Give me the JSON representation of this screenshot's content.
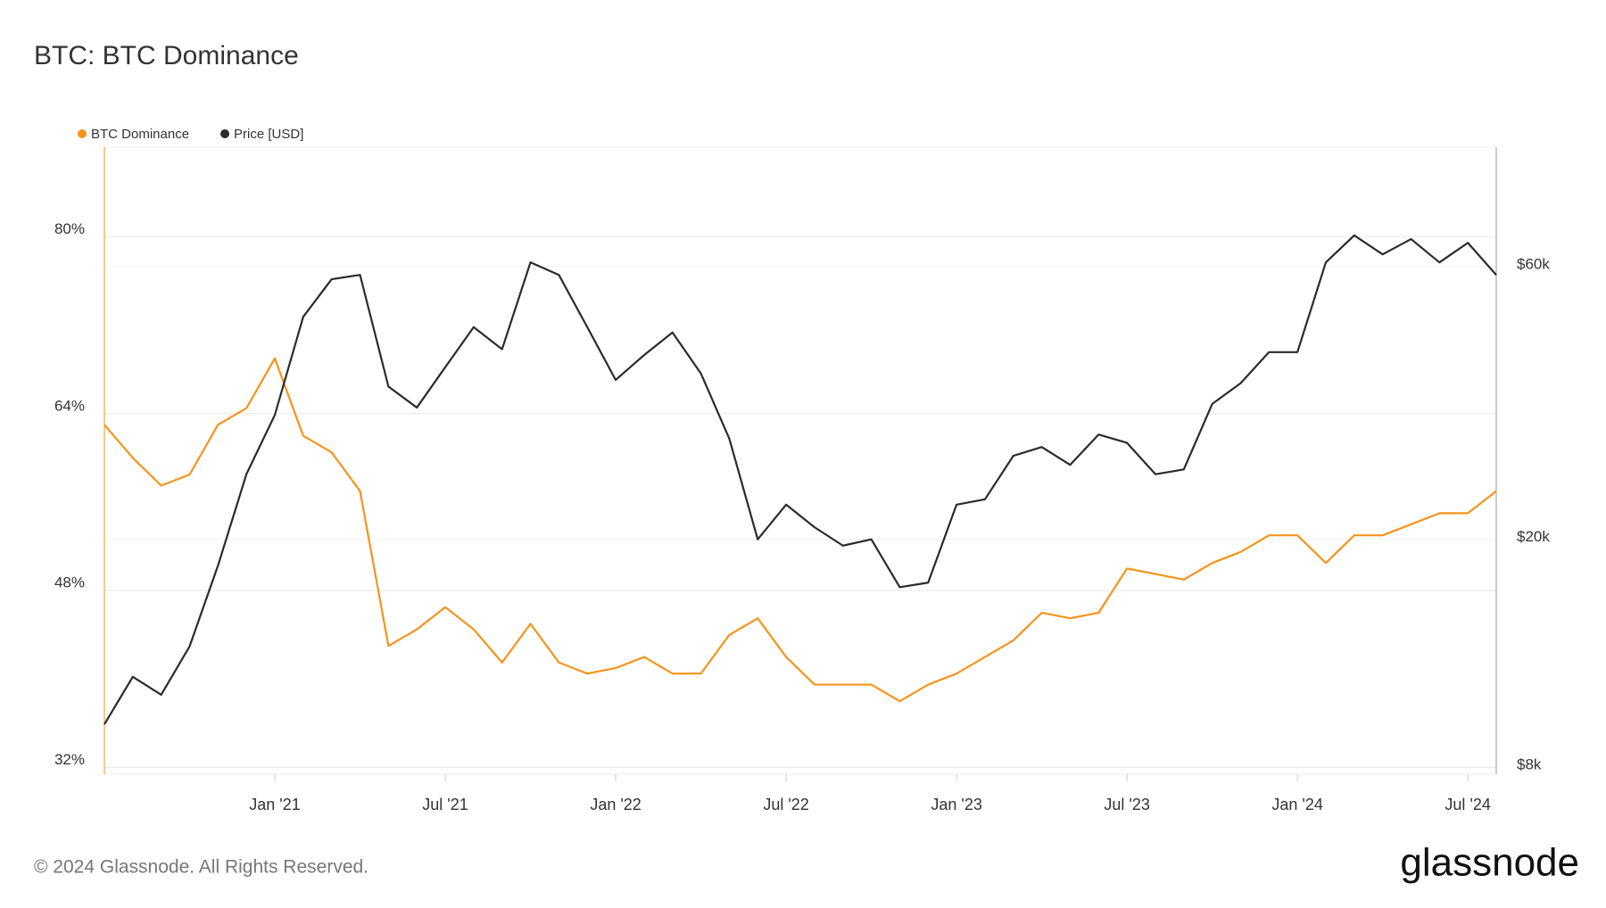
{
  "chart_data": {
    "type": "line",
    "title": "BTC: BTC Dominance",
    "footer": "© 2024 Glassnode. All Rights Reserved.",
    "brand": "glassnode",
    "x": [
      "2020-07",
      "2020-08",
      "2020-09",
      "2020-10",
      "2020-11",
      "2020-12",
      "2021-01",
      "2021-02",
      "2021-03",
      "2021-04",
      "2021-05",
      "2021-06",
      "2021-07",
      "2021-08",
      "2021-09",
      "2021-10",
      "2021-11",
      "2021-12",
      "2022-01",
      "2022-02",
      "2022-03",
      "2022-04",
      "2022-05",
      "2022-06",
      "2022-07",
      "2022-08",
      "2022-09",
      "2022-10",
      "2022-11",
      "2022-12",
      "2023-01",
      "2023-02",
      "2023-03",
      "2023-04",
      "2023-05",
      "2023-06",
      "2023-07",
      "2023-08",
      "2023-09",
      "2023-10",
      "2023-11",
      "2023-12",
      "2024-01",
      "2024-02",
      "2024-03",
      "2024-04",
      "2024-05",
      "2024-06",
      "2024-07",
      "2024-08"
    ],
    "xlim": [
      "2020-07",
      "2024-08"
    ],
    "xticks": [
      {
        "value": "2021-01",
        "label": "Jan '21"
      },
      {
        "value": "2021-07",
        "label": "Jul '21"
      },
      {
        "value": "2022-01",
        "label": "Jan '22"
      },
      {
        "value": "2022-07",
        "label": "Jul '22"
      },
      {
        "value": "2023-01",
        "label": "Jan '23"
      },
      {
        "value": "2023-07",
        "label": "Jul '23"
      },
      {
        "value": "2024-01",
        "label": "Jan '24"
      },
      {
        "value": "2024-07",
        "label": "Jul '24"
      }
    ],
    "ylim": [
      31.4,
      88.1
    ],
    "yticks": [
      {
        "value": 32,
        "label": "32%"
      },
      {
        "value": 48,
        "label": "48%"
      },
      {
        "value": 64,
        "label": "64%"
      },
      {
        "value": 80,
        "label": "80%"
      }
    ],
    "y2lim": [
      7770,
      97000
    ],
    "y2scale": "log",
    "y2ticks": [
      {
        "value": 8000,
        "label": "$8k"
      },
      {
        "value": 20000,
        "label": "$20k"
      },
      {
        "value": 60000,
        "label": "$60k"
      }
    ],
    "grid": true,
    "legend": "top-left",
    "series": [
      {
        "name": "BTC Dominance",
        "color": "#f7931a",
        "axis": "y",
        "values": [
          63,
          60,
          57.5,
          58.5,
          63,
          64.5,
          69,
          62,
          60.5,
          57,
          43,
          44.5,
          46.5,
          44.5,
          41.5,
          45,
          41.5,
          40.5,
          41,
          42,
          40.5,
          40.5,
          44,
          45.5,
          42,
          39.5,
          39.5,
          39.5,
          38,
          39.5,
          40.5,
          42,
          43.5,
          46,
          45.5,
          46,
          50,
          49.5,
          49,
          50.5,
          51.5,
          53,
          53,
          50.5,
          53,
          53,
          54,
          55,
          55,
          57
        ]
      },
      {
        "name": "Price [USD]",
        "color": "#2b2b2b",
        "axis": "y2",
        "values": [
          9500,
          11500,
          10700,
          13000,
          18000,
          26000,
          33000,
          49000,
          57000,
          58000,
          37000,
          34000,
          40000,
          47000,
          43000,
          61000,
          58000,
          47000,
          38000,
          42000,
          46000,
          39000,
          30000,
          20000,
          23000,
          21000,
          19500,
          20000,
          16500,
          16800,
          23000,
          23500,
          28000,
          29000,
          27000,
          30500,
          29500,
          26000,
          26500,
          34500,
          37500,
          42500,
          42500,
          61000,
          68000,
          63000,
          67000,
          61000,
          66000,
          58000
        ]
      }
    ]
  }
}
